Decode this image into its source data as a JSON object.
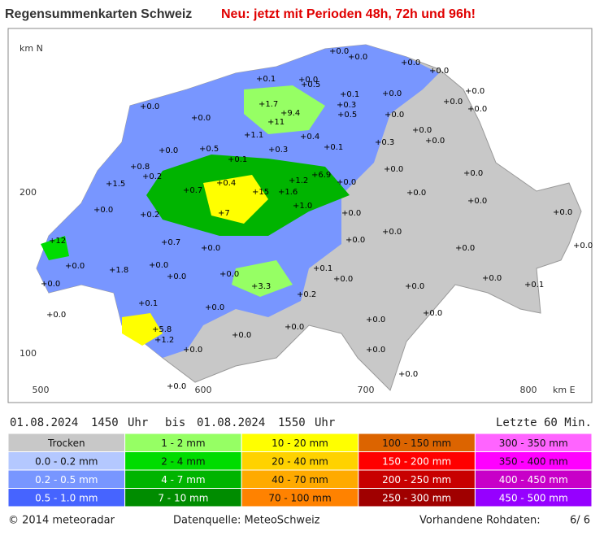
{
  "header": {
    "title": "Regensummenkarten Schweiz",
    "notice": "Neu: jetzt mit Perioden 48h, 72h und 96h!"
  },
  "map": {
    "north_label": "km N",
    "east_label": "km E",
    "y_labels": [
      "200",
      "100"
    ],
    "x_labels": [
      "500",
      "600",
      "700",
      "800"
    ],
    "stations": [
      "+0.0",
      "+0.0",
      "+0.0",
      "+0.0",
      "+0.1",
      "+0.0",
      "+0.5",
      "+0.1",
      "+0.0",
      "+0.0",
      "+0.0",
      "+0.0",
      "+0.0",
      "+1.7",
      "+9.4",
      "+0.3",
      "+0.5",
      "+0.0",
      "+0.0",
      "+11",
      "+0.0",
      "+1.1",
      "+0.4",
      "+0.5",
      "+0.3",
      "+0.1",
      "+0.3",
      "+0.0",
      "+0.0",
      "+0.1",
      "+0.8",
      "+0.2",
      "+0.4",
      "+1.2",
      "+6.9",
      "+1.5",
      "+0.7",
      "+15",
      "+1.6",
      "+0.0",
      "+0.0",
      "+0.0",
      "+0.0",
      "+0.2",
      "+7",
      "+1.0",
      "+0.0",
      "+0.0",
      "+0.0",
      "+12",
      "+0.7",
      "+0.0",
      "+0.0",
      "+0.0",
      "+0.0",
      "+0.0",
      "+0.0",
      "+0.0",
      "+1.8",
      "+0.0",
      "+0.0",
      "+0.1",
      "+0.0",
      "+0.0",
      "+3.3",
      "+0.2",
      "+0.0",
      "+0.0",
      "+0.0",
      "+0.1",
      "+0.1",
      "+0.0",
      "+0.0",
      "+5.8",
      "+1.2",
      "+0.0",
      "+0.0",
      "+0.0",
      "+0.0",
      "+0.0",
      "+0.0",
      "+0.0",
      "+0.0"
    ]
  },
  "period": {
    "from_date": "01.08.2024",
    "from_time": "1450",
    "from_unit": "Uhr",
    "separator": "bis",
    "to_date": "01.08.2024",
    "to_time": "1550",
    "to_unit": "Uhr",
    "window": "Letzte 60 Min."
  },
  "legend": [
    {
      "label": "Trocken",
      "color": "#c8c8c8"
    },
    {
      "label": "0.0 - 0.2 mm",
      "color": "#b4c8ff"
    },
    {
      "label": "0.2 - 0.5 mm",
      "color": "#7896ff"
    },
    {
      "label": "0.5 - 1.0 mm",
      "color": "#4664ff"
    },
    {
      "label": "1 - 2 mm",
      "color": "#96ff64"
    },
    {
      "label": "2 - 4 mm",
      "color": "#00dc00"
    },
    {
      "label": "4 - 7 mm",
      "color": "#00b400"
    },
    {
      "label": "7 - 10 mm",
      "color": "#008c00"
    },
    {
      "label": "10 - 20 mm",
      "color": "#ffff00"
    },
    {
      "label": "20 - 40 mm",
      "color": "#ffd200"
    },
    {
      "label": "40 - 70 mm",
      "color": "#ffaa00"
    },
    {
      "label": "70 - 100 mm",
      "color": "#ff8200"
    },
    {
      "label": "100 - 150 mm",
      "color": "#dc6400"
    },
    {
      "label": "150 - 200 mm",
      "color": "#ff0000"
    },
    {
      "label": "200 - 250 mm",
      "color": "#c80000"
    },
    {
      "label": "250 - 300 mm",
      "color": "#a00000"
    },
    {
      "label": "300 - 350 mm",
      "color": "#ff64ff"
    },
    {
      "label": "350 - 400 mm",
      "color": "#ff00ff"
    },
    {
      "label": "400 - 450 mm",
      "color": "#c800c8"
    },
    {
      "label": "450 - 500 mm",
      "color": "#9600ff"
    }
  ],
  "footer": {
    "copyright": "© 2014 meteoradar",
    "source": "Datenquelle: MeteoSchweiz",
    "raw_label": "Vorhandene Rohdaten:",
    "raw_count": "6/ 6"
  }
}
